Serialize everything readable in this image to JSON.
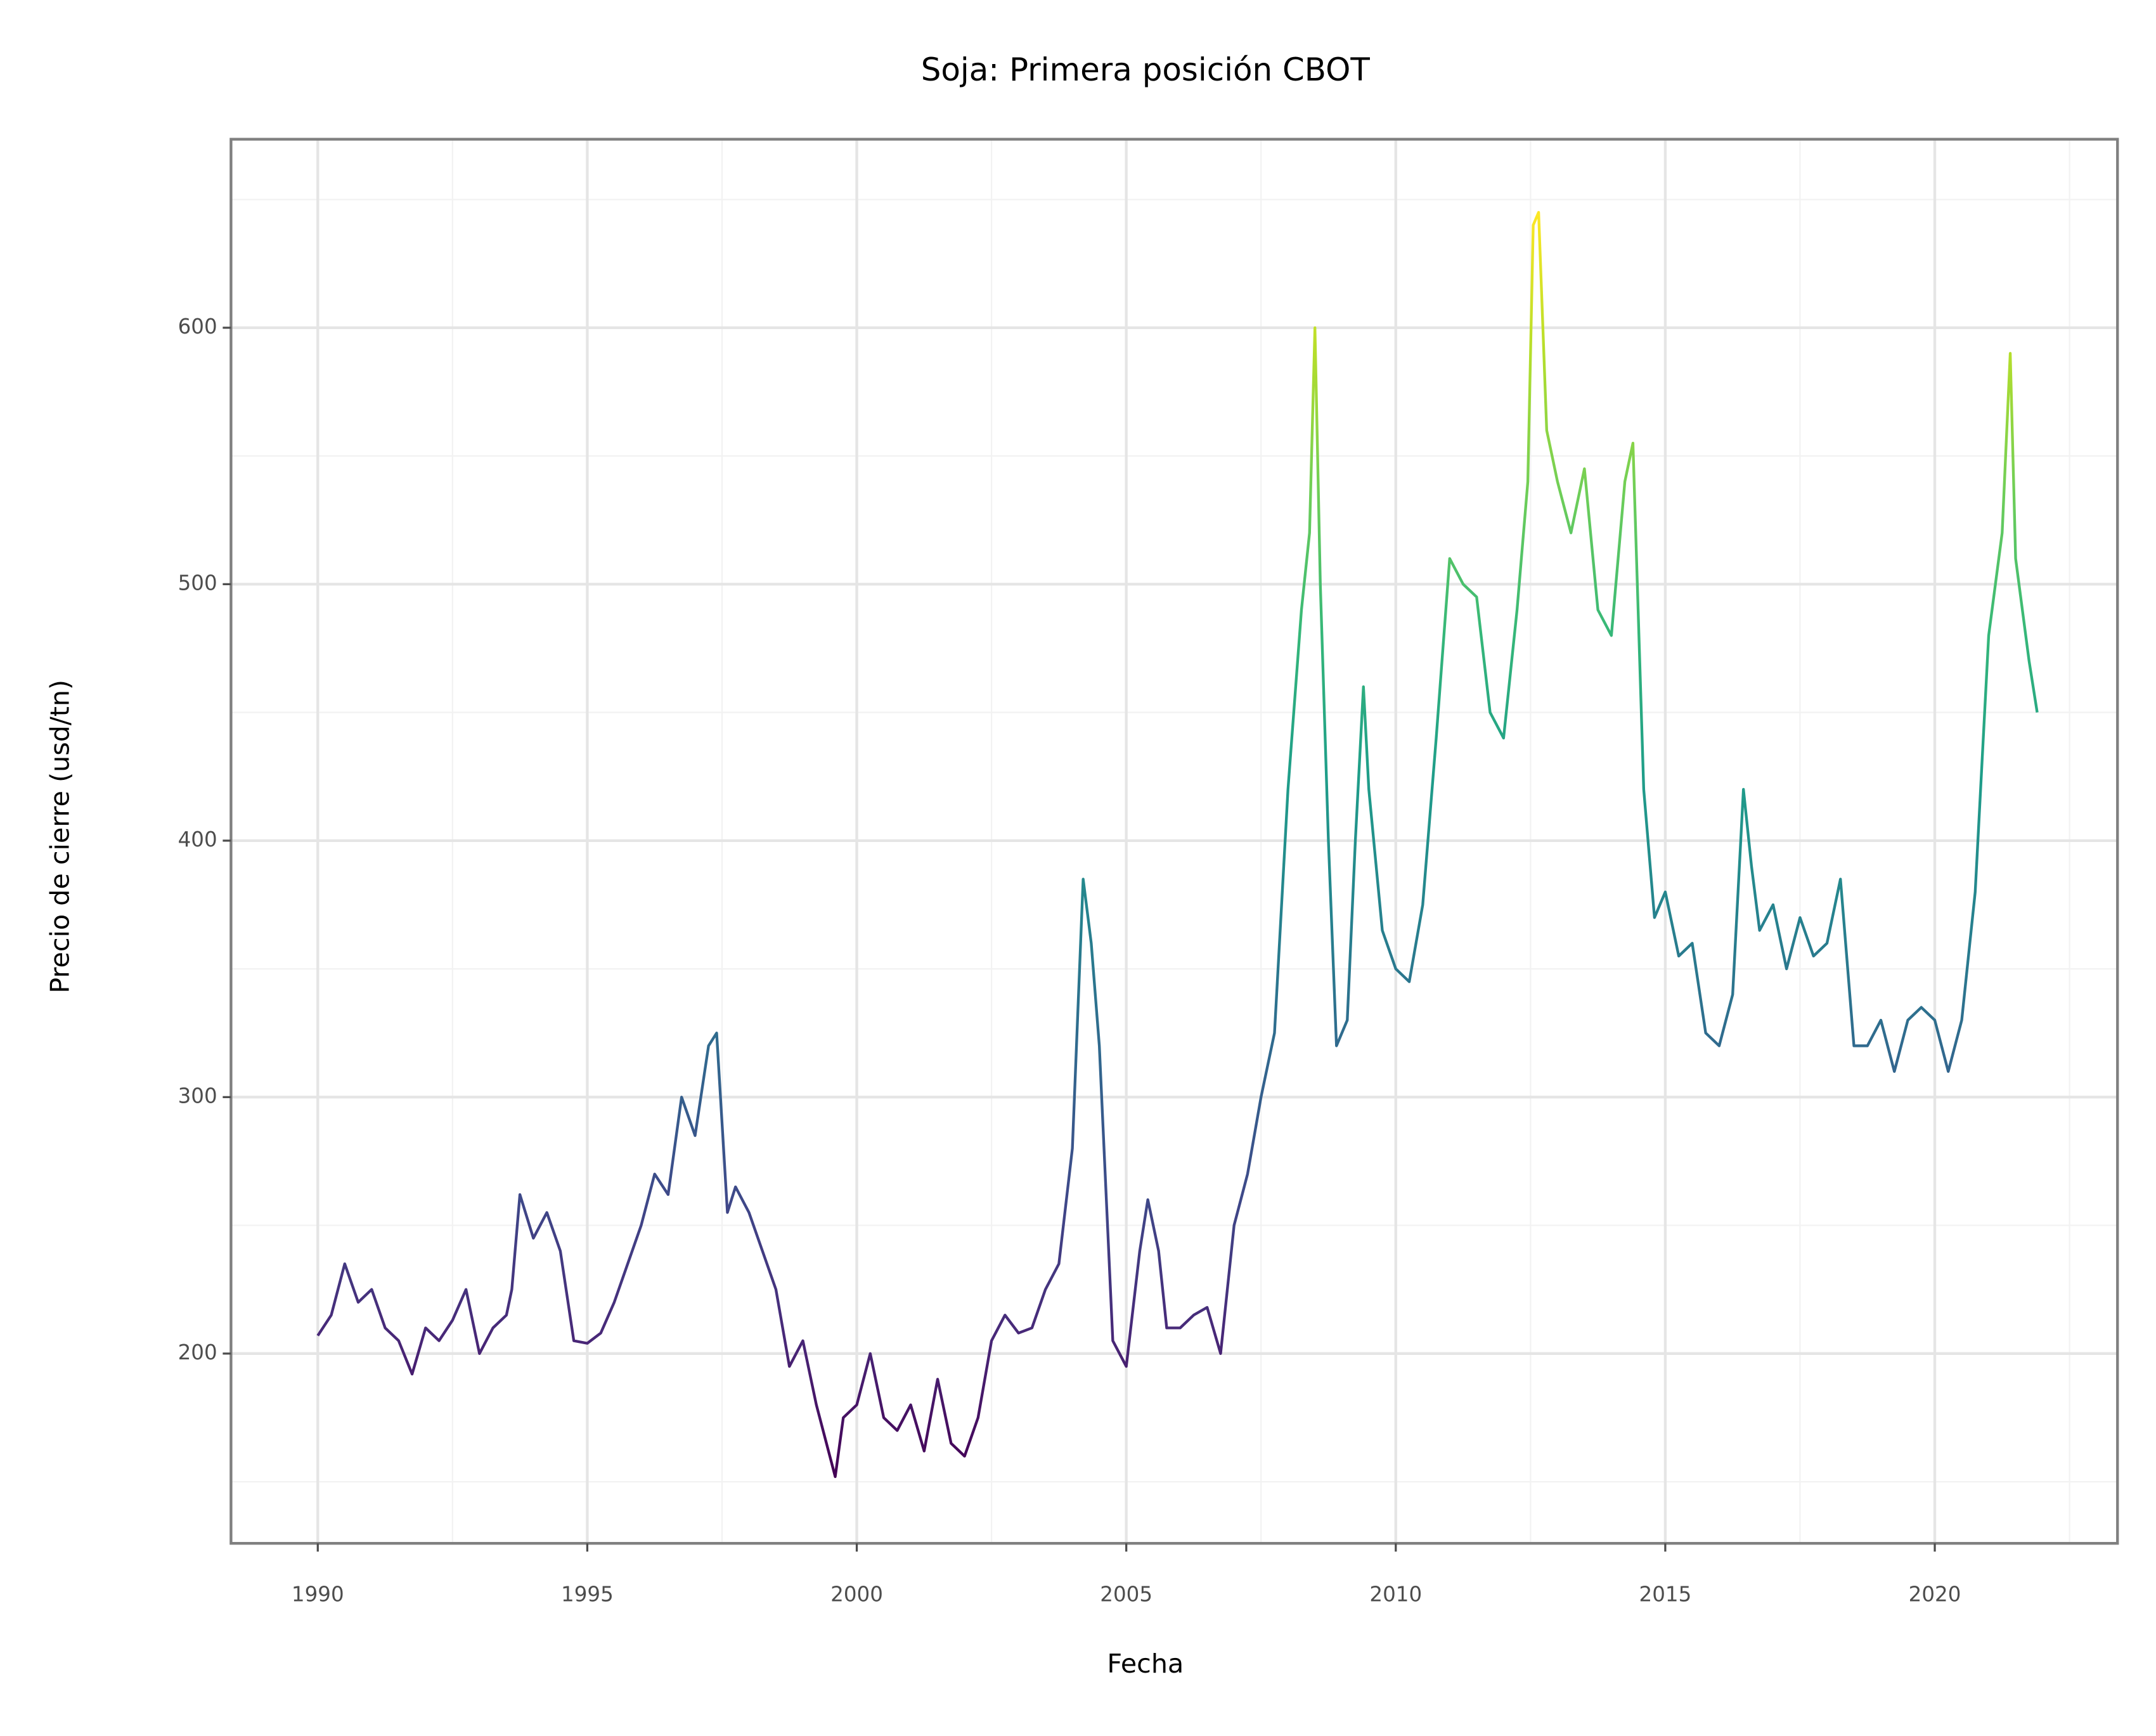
{
  "chart_data": {
    "type": "line",
    "title": "Soja: Primera posición CBOT",
    "xlabel": "Fecha",
    "ylabel": "Precio de cierre (usd/tn)",
    "x": [
      1990.0,
      1990.25,
      1990.5,
      1990.75,
      1991.0,
      1991.25,
      1991.5,
      1991.75,
      1992.0,
      1992.25,
      1992.5,
      1992.75,
      1993.0,
      1993.25,
      1993.5,
      1993.6,
      1993.75,
      1994.0,
      1994.25,
      1994.5,
      1994.75,
      1995.0,
      1995.25,
      1995.5,
      1995.75,
      1996.0,
      1996.25,
      1996.5,
      1996.75,
      1997.0,
      1997.25,
      1997.4,
      1997.6,
      1997.75,
      1998.0,
      1998.25,
      1998.5,
      1998.75,
      1999.0,
      1999.25,
      1999.5,
      1999.6,
      1999.75,
      2000.0,
      2000.25,
      2000.5,
      2000.75,
      2001.0,
      2001.25,
      2001.5,
      2001.75,
      2002.0,
      2002.25,
      2002.5,
      2002.75,
      2003.0,
      2003.25,
      2003.5,
      2003.75,
      2004.0,
      2004.2,
      2004.35,
      2004.5,
      2004.75,
      2005.0,
      2005.25,
      2005.4,
      2005.6,
      2005.75,
      2006.0,
      2006.25,
      2006.5,
      2006.75,
      2007.0,
      2007.25,
      2007.5,
      2007.75,
      2008.0,
      2008.25,
      2008.4,
      2008.5,
      2008.6,
      2008.75,
      2008.9,
      2009.1,
      2009.25,
      2009.4,
      2009.5,
      2009.75,
      2010.0,
      2010.25,
      2010.5,
      2010.75,
      2011.0,
      2011.25,
      2011.5,
      2011.75,
      2012.0,
      2012.25,
      2012.45,
      2012.55,
      2012.65,
      2012.8,
      2013.0,
      2013.25,
      2013.5,
      2013.75,
      2014.0,
      2014.25,
      2014.4,
      2014.6,
      2014.8,
      2015.0,
      2015.25,
      2015.5,
      2015.75,
      2016.0,
      2016.25,
      2016.45,
      2016.6,
      2016.75,
      2017.0,
      2017.25,
      2017.5,
      2017.75,
      2018.0,
      2018.25,
      2018.5,
      2018.75,
      2019.0,
      2019.25,
      2019.5,
      2019.75,
      2020.0,
      2020.25,
      2020.5,
      2020.75,
      2021.0,
      2021.25,
      2021.4,
      2021.5,
      2021.75,
      2021.9
    ],
    "values": [
      207,
      215,
      235,
      220,
      225,
      210,
      205,
      192,
      210,
      205,
      213,
      225,
      200,
      210,
      215,
      225,
      262,
      245,
      255,
      240,
      205,
      204,
      208,
      220,
      235,
      250,
      270,
      262,
      300,
      285,
      320,
      325,
      255,
      265,
      255,
      240,
      225,
      195,
      205,
      180,
      160,
      152,
      175,
      180,
      200,
      175,
      170,
      180,
      162,
      190,
      165,
      160,
      175,
      205,
      215,
      208,
      210,
      225,
      235,
      280,
      385,
      360,
      320,
      205,
      195,
      240,
      260,
      240,
      210,
      210,
      215,
      218,
      200,
      250,
      270,
      300,
      325,
      420,
      490,
      520,
      600,
      500,
      400,
      320,
      330,
      400,
      460,
      420,
      365,
      350,
      345,
      375,
      440,
      510,
      500,
      495,
      450,
      440,
      490,
      540,
      640,
      645,
      560,
      540,
      520,
      545,
      490,
      480,
      540,
      555,
      420,
      370,
      380,
      355,
      360,
      325,
      320,
      340,
      420,
      390,
      365,
      375,
      350,
      370,
      355,
      360,
      385,
      320,
      320,
      330,
      310,
      330,
      335,
      330,
      310,
      330,
      380,
      480,
      520,
      590,
      510,
      470,
      450
    ],
    "colormap": [
      "#440154",
      "#482878",
      "#3e4989",
      "#31688e",
      "#26828e",
      "#1f9e89",
      "#35b779",
      "#6ece58",
      "#b5de2b",
      "#fde725"
    ],
    "xlim": [
      1988.39,
      2023.39
    ],
    "xticks": [
      1990,
      1995,
      2000,
      2005,
      2010,
      2015,
      2020
    ],
    "xminorticks": [
      1992.5,
      1997.5,
      2002.5,
      2007.5,
      2012.5,
      2017.5,
      2022.5
    ],
    "ylim": [
      126,
      673.5
    ],
    "yticks": [
      200,
      300,
      400,
      500,
      600
    ],
    "yminorticks": [
      150,
      250,
      350,
      450,
      550,
      650
    ],
    "grid": true
  }
}
